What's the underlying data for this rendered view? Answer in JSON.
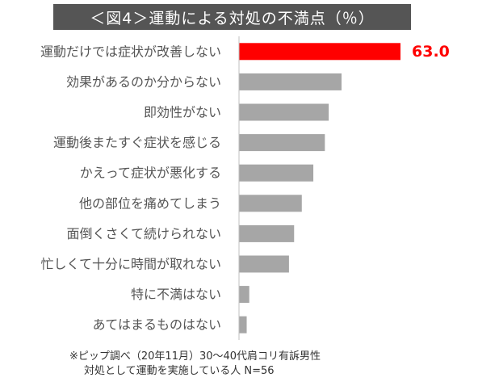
{
  "chart_data": {
    "type": "bar",
    "orientation": "horizontal",
    "title": "＜図4＞運動による対処の不満点（％）",
    "categories": [
      "運動だけでは症状が改善しない",
      "効果があるのか分からない",
      "即効性がない",
      "運動後またすぐ症状を感じる",
      "かえって症状が悪化する",
      "他の部位を痛めてしまう",
      "面倒くさくて続けられない",
      "忙しくて十分に時間が取れない",
      "特に不満はない",
      "あてはまるものはない"
    ],
    "values": [
      63.0,
      40.0,
      35.0,
      33.5,
      29.0,
      24.5,
      21.5,
      19.5,
      4.0,
      3.0
    ],
    "data_labels": [
      "63.0",
      "",
      "",
      "",
      "",
      "",
      "",
      "",
      "",
      ""
    ],
    "xlim": [
      0,
      63.0
    ],
    "grid": false,
    "colors": {
      "highlight": "#ff0000",
      "bar": "#a6a6a6",
      "axis": "#bfbfbf",
      "title_bg": "#555555"
    }
  },
  "footnote": {
    "line1": "※ピップ調べ（20年11月）30〜40代肩コリ有訴男性",
    "line2": "対処として運動を実施している人 N=56"
  }
}
